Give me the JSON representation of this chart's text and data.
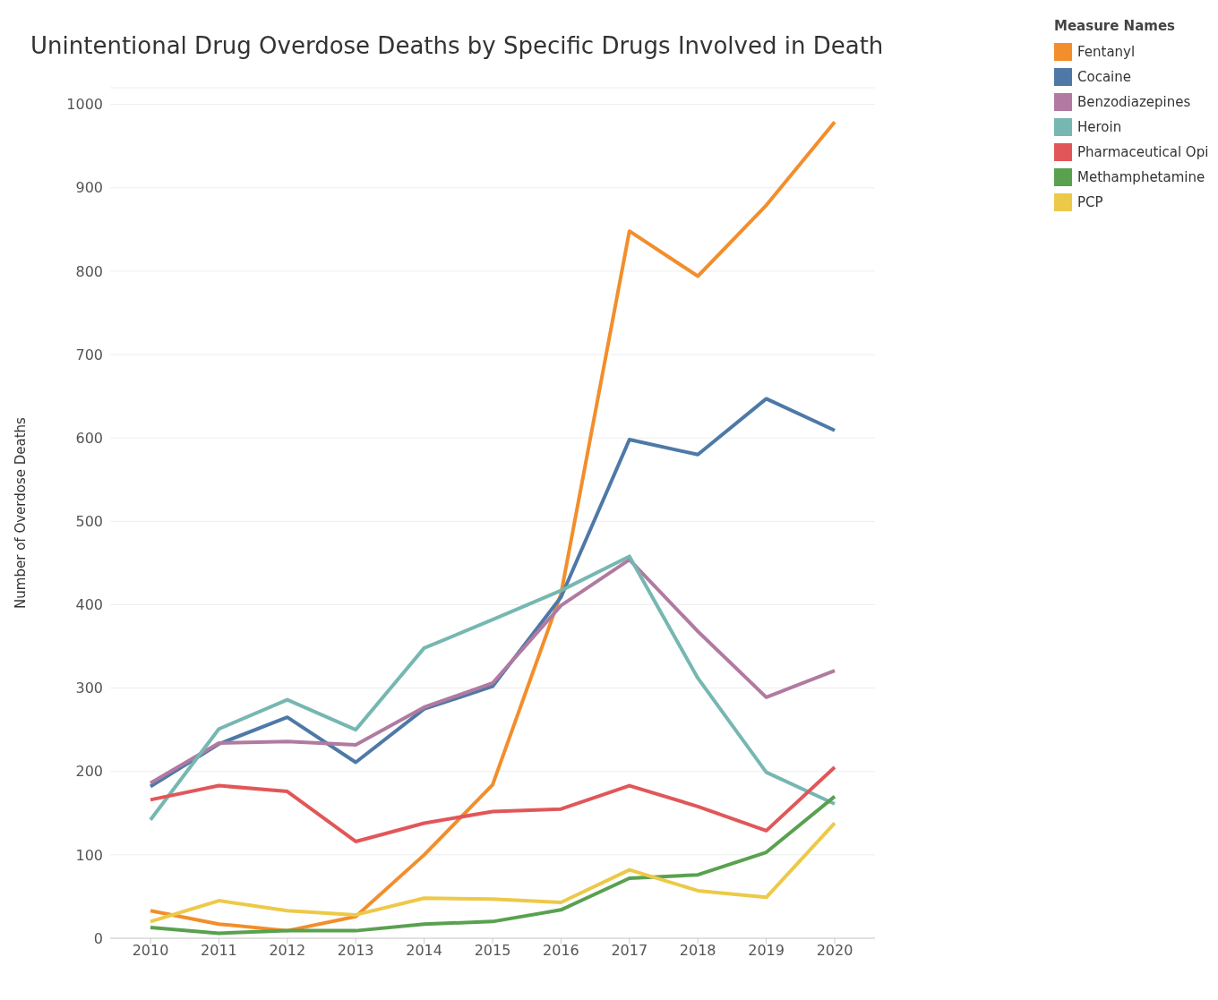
{
  "chart_data": {
    "type": "line",
    "title": "Unintentional Drug Overdose Deaths by Specific Drugs Involved in Death",
    "ylabel": "Number of Overdose Deaths",
    "legend_title": "Measure Names",
    "categories": [
      "2010",
      "2011",
      "2012",
      "2013",
      "2014",
      "2015",
      "2016",
      "2017",
      "2018",
      "2019",
      "2020"
    ],
    "series": [
      {
        "name": "Fentanyl",
        "color": "#f28e2b",
        "values": [
          33,
          17,
          9,
          26,
          100,
          184,
          413,
          848,
          794,
          879,
          979
        ]
      },
      {
        "name": "Cocaine",
        "color": "#4e79a7",
        "values": [
          182,
          233,
          265,
          211,
          275,
          302,
          409,
          598,
          580,
          647,
          609
        ]
      },
      {
        "name": "Benzodiazepines",
        "color": "#b07aa1",
        "values": [
          186,
          234,
          236,
          232,
          277,
          306,
          399,
          454,
          368,
          289,
          321
        ]
      },
      {
        "name": "Heroin",
        "color": "#76b7b2",
        "values": [
          142,
          251,
          286,
          250,
          348,
          382,
          417,
          458,
          312,
          199,
          161
        ]
      },
      {
        "name": "Pharmaceutical Opi",
        "color": "#e15759",
        "values": [
          166,
          183,
          176,
          116,
          138,
          152,
          155,
          183,
          158,
          129,
          205
        ]
      },
      {
        "name": "Methamphetamine",
        "color": "#59a14f",
        "values": [
          13,
          6,
          9,
          9,
          17,
          20,
          34,
          72,
          76,
          103,
          170
        ]
      },
      {
        "name": "PCP",
        "color": "#edc948",
        "values": [
          20,
          45,
          33,
          28,
          48,
          47,
          43,
          82,
          57,
          49,
          138
        ]
      }
    ],
    "ylim": [
      0,
      1020
    ],
    "yticks": [
      0,
      100,
      200,
      300,
      400,
      500,
      600,
      700,
      800,
      900,
      1000
    ],
    "grid": "y",
    "legend": "top right",
    "marker": "none",
    "line_style": "solid"
  }
}
